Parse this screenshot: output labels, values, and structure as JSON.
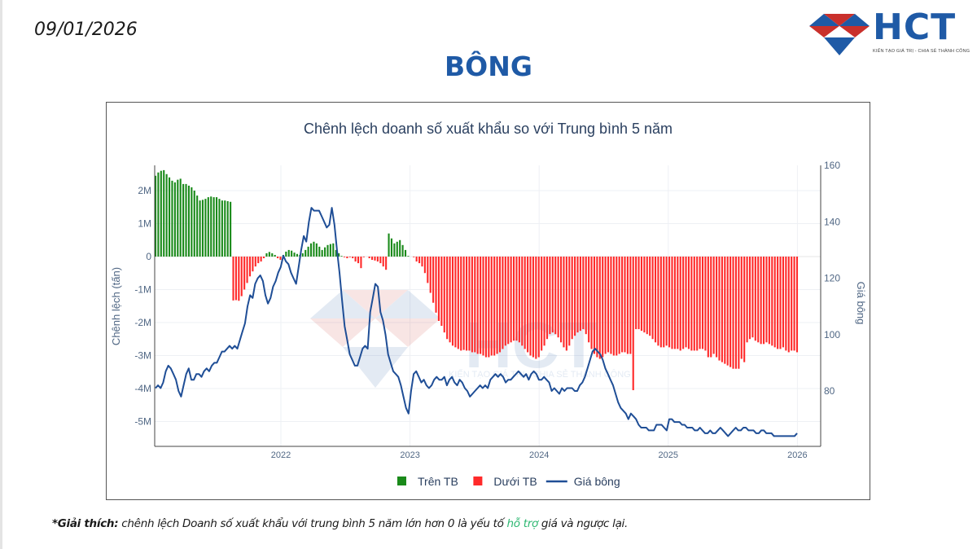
{
  "header": {
    "date": "09/01/2026",
    "page_title": "BÔNG",
    "logo": {
      "text": "HCT",
      "tagline": "KIẾN TẠO GIÁ TRỊ - CHIA SẺ THÀNH CÔNG",
      "colors": {
        "blue": "#1f5aa6",
        "red": "#c9302c"
      }
    }
  },
  "footnote": {
    "label": "*Giải thích:",
    "text_before": " chênh lệch Doanh số xuất khẩu với trung bình 5 năm lớn hơn 0 là yếu tố ",
    "highlight": "hỗ trợ",
    "text_after": " giá và ngược lại."
  },
  "chart_data": {
    "type": "bar+line",
    "title": "Chênh lệch doanh số xuất khẩu so với Trung bình 5 năm",
    "xlabel": "",
    "ylabel": "Chênh lệch (tấn)",
    "y2label": "Giá bông",
    "x_ticks": [
      "2022",
      "2023",
      "2024",
      "2025",
      "2026"
    ],
    "y_ticks": [
      "2M",
      "1M",
      "0",
      "-1M",
      "-2M",
      "-3M",
      "-4M",
      "-5M"
    ],
    "y_tick_values": [
      2000000,
      1000000,
      0,
      -1000000,
      -2000000,
      -3000000,
      -4000000,
      -5000000
    ],
    "y2_ticks": [
      "160",
      "140",
      "120",
      "100",
      "80"
    ],
    "y2_tick_values": [
      160,
      140,
      120,
      100,
      80
    ],
    "ylim": [
      -5700000,
      2800000
    ],
    "y2lim": [
      64,
      160
    ],
    "x_range": [
      "2021-02",
      "2026-01"
    ],
    "grid": true,
    "legend_position": "bottom-center",
    "legend": [
      {
        "name": "Trên TB",
        "type": "bar",
        "color": "#1a8a1a"
      },
      {
        "name": "Dưới TB",
        "type": "bar",
        "color": "#ff2a2a"
      },
      {
        "name": "Giá bông",
        "type": "line",
        "color": "#1f4e96"
      }
    ],
    "series": [
      {
        "name": "Chênh lệch (weekly, tấn)",
        "start": "2021-02",
        "frequency": "weekly",
        "values": [
          2.45,
          2.55,
          2.6,
          2.62,
          2.5,
          2.4,
          2.3,
          2.25,
          2.33,
          2.36,
          2.2,
          2.2,
          2.15,
          2.1,
          2.0,
          1.85,
          1.7,
          1.72,
          1.75,
          1.8,
          1.82,
          1.8,
          1.8,
          1.75,
          1.7,
          1.7,
          1.68,
          1.66,
          -1.33,
          -1.32,
          -1.34,
          -1.2,
          -1.0,
          -0.8,
          -0.6,
          -0.45,
          -0.3,
          -0.2,
          -0.15,
          -0.05,
          0.1,
          0.14,
          0.1,
          0.05,
          -0.05,
          -0.1,
          0.05,
          0.15,
          0.2,
          0.18,
          0.12,
          0.08,
          0.05,
          0.1,
          0.2,
          0.3,
          0.4,
          0.45,
          0.4,
          0.3,
          0.2,
          0.28,
          0.35,
          0.38,
          0.4,
          0.2,
          0.1,
          0.02,
          -0.02,
          -0.05,
          -0.02,
          -0.05,
          -0.15,
          -0.2,
          -0.35,
          -0.02,
          0.0,
          -0.05,
          -0.1,
          -0.12,
          -0.15,
          -0.2,
          -0.3,
          -0.4,
          0.7,
          0.55,
          0.4,
          0.45,
          0.5,
          0.35,
          0.2,
          0.02,
          0.0,
          -0.02,
          -0.15,
          -0.2,
          -0.3,
          -0.5,
          -0.8,
          -1.1,
          -1.4,
          -1.7,
          -1.95,
          -2.1,
          -2.3,
          -2.5,
          -2.6,
          -2.7,
          -2.75,
          -2.8,
          -2.85,
          -2.83,
          -2.85,
          -2.85,
          -2.9,
          -2.9,
          -2.95,
          -2.95,
          -3.0,
          -3.05,
          -3.05,
          -3.0,
          -3.0,
          -2.95,
          -2.9,
          -2.8,
          -2.7,
          -2.65,
          -2.6,
          -2.55,
          -2.55,
          -2.6,
          -2.7,
          -2.8,
          -2.9,
          -3.0,
          -3.05,
          -3.1,
          -3.05,
          -2.85,
          -2.7,
          -2.5,
          -2.35,
          -2.3,
          -2.35,
          -2.45,
          -2.6,
          -2.75,
          -2.85,
          -2.7,
          -2.5,
          -2.4,
          -2.3,
          -2.25,
          -2.2,
          -2.35,
          -2.6,
          -2.8,
          -2.95,
          -3.05,
          -3.1,
          -3.05,
          -2.95,
          -2.9,
          -2.95,
          -3.0,
          -3.0,
          -2.95,
          -2.9,
          -2.9,
          -2.95,
          -2.95,
          -4.05,
          -2.2,
          -2.2,
          -2.25,
          -2.3,
          -2.35,
          -2.4,
          -2.5,
          -2.6,
          -2.7,
          -2.75,
          -2.75,
          -2.7,
          -2.75,
          -2.8,
          -2.8,
          -2.8,
          -2.85,
          -2.8,
          -2.75,
          -2.8,
          -2.85,
          -2.85,
          -2.85,
          -2.8,
          -2.8,
          -2.85,
          -3.05,
          -3.05,
          -2.95,
          -3.05,
          -3.15,
          -3.2,
          -3.25,
          -3.3,
          -3.35,
          -3.4,
          -3.4,
          -3.4,
          -3.1,
          -3.2,
          -2.6,
          -2.5,
          -2.45,
          -2.55,
          -2.6,
          -2.65,
          -2.65,
          -2.6,
          -2.65,
          -2.7,
          -2.75,
          -2.8,
          -2.8,
          -2.75,
          -2.85,
          -2.9,
          -2.85,
          -2.85,
          -2.9
        ]
      },
      {
        "name": "Giá bông",
        "start": "2021-02",
        "frequency": "weekly",
        "values": [
          81,
          82,
          81,
          83,
          87,
          89,
          88,
          86,
          84,
          80,
          78,
          82,
          86,
          88,
          84,
          84,
          86,
          86,
          85,
          87,
          88,
          87,
          89,
          90,
          90,
          92,
          94,
          94,
          95,
          96,
          95,
          96,
          95,
          98,
          101,
          104,
          110,
          114,
          113,
          118,
          120,
          121,
          119,
          114,
          111,
          113,
          117,
          119,
          122,
          124,
          128,
          126,
          125,
          122,
          120,
          118,
          124,
          130,
          135,
          133,
          140,
          145,
          144,
          144,
          144,
          142,
          140,
          138,
          139,
          145,
          139,
          130,
          122,
          112,
          103,
          98,
          93,
          91,
          89,
          89,
          92,
          95,
          96,
          95,
          108,
          113,
          118,
          117,
          108,
          105,
          100,
          93,
          90,
          87,
          86,
          85,
          82,
          78,
          74,
          72,
          80,
          86,
          87,
          85,
          83,
          84,
          82,
          81,
          82,
          84,
          85,
          84,
          84,
          85,
          82,
          84,
          85,
          83,
          82,
          84,
          83,
          81,
          80,
          78,
          79,
          80,
          81,
          82,
          81,
          82,
          81,
          84,
          85,
          86,
          85,
          86,
          85,
          83,
          84,
          84,
          85,
          86,
          87,
          86,
          85,
          86,
          84,
          86,
          87,
          86,
          84,
          84,
          85,
          84,
          83,
          80,
          81,
          80,
          79,
          81,
          80,
          81,
          81,
          81,
          80,
          80,
          82,
          83,
          85,
          88,
          91,
          94,
          95,
          94,
          93,
          91,
          88,
          86,
          84,
          82,
          79,
          76,
          74,
          73,
          72,
          70,
          72,
          71,
          70,
          68,
          67,
          67,
          67,
          66,
          66,
          66,
          68,
          68,
          68,
          67,
          66,
          70,
          70,
          69,
          69,
          69,
          68,
          68,
          67,
          67,
          67,
          66,
          66,
          67,
          66,
          65,
          65,
          66,
          65,
          65,
          66,
          67,
          66,
          65,
          64,
          65,
          66,
          67,
          66,
          66,
          67,
          67,
          66,
          66,
          66,
          65,
          65,
          66,
          66,
          65,
          65,
          65,
          64,
          64,
          64,
          64,
          64,
          64,
          64,
          64,
          64,
          65
        ]
      }
    ]
  }
}
